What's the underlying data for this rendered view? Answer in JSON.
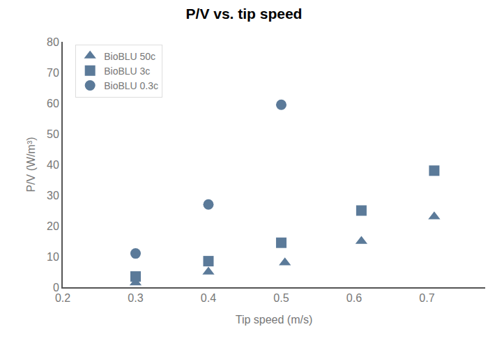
{
  "chart_data": {
    "type": "scatter",
    "title": "P/V vs. tip speed",
    "x_label": "Tip speed (m/s)",
    "y_label": "P/V (W/m³)",
    "xlim": [
      0.2,
      0.78
    ],
    "xticks": [
      0.2,
      0.3,
      0.4,
      0.5,
      0.6,
      0.7
    ],
    "ylim": [
      0,
      80
    ],
    "yticks": [
      0,
      10,
      20,
      30,
      40,
      50,
      60,
      70,
      80
    ],
    "grid": false,
    "legend": "upper left",
    "series": [
      {
        "name": "BioBLU 50c",
        "color": "#5b7a99",
        "marker": "triangle-up",
        "x": [
          0.3,
          0.4,
          0.505,
          0.61,
          0.71
        ],
        "values": [
          1.5,
          5,
          8,
          15,
          23
        ]
      },
      {
        "name": "BioBLU 3c",
        "color": "#5b7a99",
        "marker": "square",
        "x": [
          0.3,
          0.4,
          0.5,
          0.61,
          0.71
        ],
        "values": [
          3.5,
          8.5,
          14.5,
          25,
          38
        ]
      },
      {
        "name": "BioBLU 0.3c",
        "color": "#5b7a99",
        "marker": "circle",
        "x": [
          0.3,
          0.4,
          0.5
        ],
        "values": [
          11,
          27,
          59.5
        ]
      }
    ]
  }
}
